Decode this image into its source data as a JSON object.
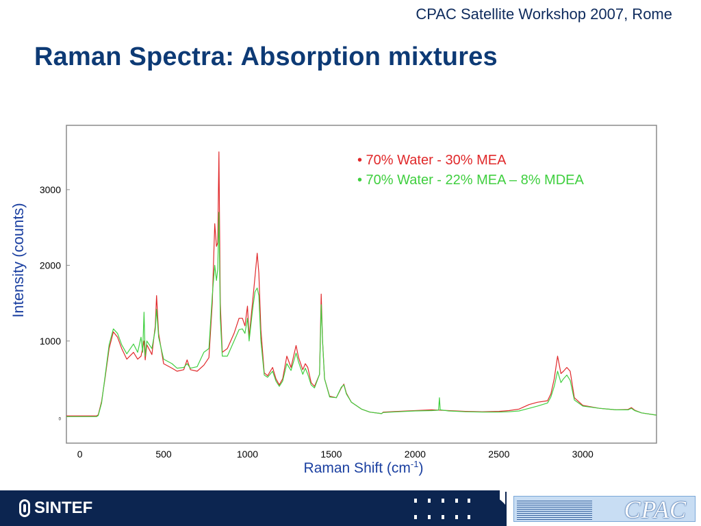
{
  "header": {
    "event": "CPAC Satellite Workshop 2007, Rome",
    "title": "Raman Spectra: Absorption mixtures"
  },
  "footer": {
    "left_logo_text": "SINTEF",
    "right_logo_text": "CPAC"
  },
  "colors": {
    "title": "#0d3a75",
    "axis_label": "#1a3fa0",
    "series_mea": "#e0282a",
    "series_mdea": "#3fcf3f",
    "footer_bg": "#0c2550"
  },
  "chart_data": {
    "type": "line",
    "xlabel": "Raman Shift (cm",
    "xlabel_sup": "-1",
    "xlabel_end": ")",
    "ylabel": "Intensity (counts)",
    "xlim": [
      -80,
      3440
    ],
    "ylim": [
      -350,
      3850
    ],
    "x_ticks": [
      0,
      500,
      1000,
      1500,
      2000,
      2500,
      3000
    ],
    "y_ticks": [
      0,
      1000,
      2000,
      3000
    ],
    "y_tick_labels": [
      "0",
      "1000",
      "2000",
      "3000"
    ],
    "grid": false,
    "legend_position": "top-right",
    "series": [
      {
        "name": "• 70% Water - 30% MEA",
        "color": "#e0282a",
        "points": [
          [
            -80,
            10
          ],
          [
            100,
            10
          ],
          [
            110,
            25
          ],
          [
            130,
            200
          ],
          [
            150,
            500
          ],
          [
            175,
            900
          ],
          [
            200,
            1120
          ],
          [
            225,
            1050
          ],
          [
            250,
            900
          ],
          [
            280,
            760
          ],
          [
            320,
            850
          ],
          [
            345,
            760
          ],
          [
            365,
            800
          ],
          [
            383,
            1000
          ],
          [
            390,
            750
          ],
          [
            400,
            950
          ],
          [
            430,
            820
          ],
          [
            450,
            1200
          ],
          [
            458,
            1600
          ],
          [
            470,
            1100
          ],
          [
            500,
            700
          ],
          [
            550,
            640
          ],
          [
            580,
            600
          ],
          [
            620,
            620
          ],
          [
            640,
            750
          ],
          [
            660,
            620
          ],
          [
            700,
            600
          ],
          [
            740,
            680
          ],
          [
            770,
            780
          ],
          [
            790,
            1500
          ],
          [
            805,
            2550
          ],
          [
            815,
            2250
          ],
          [
            823,
            2300
          ],
          [
            830,
            3500
          ],
          [
            838,
            1500
          ],
          [
            850,
            850
          ],
          [
            880,
            900
          ],
          [
            920,
            1100
          ],
          [
            950,
            1300
          ],
          [
            970,
            1300
          ],
          [
            985,
            1200
          ],
          [
            1000,
            1460
          ],
          [
            1010,
            1050
          ],
          [
            1030,
            1500
          ],
          [
            1045,
            1850
          ],
          [
            1058,
            2160
          ],
          [
            1068,
            1900
          ],
          [
            1080,
            1150
          ],
          [
            1100,
            580
          ],
          [
            1120,
            540
          ],
          [
            1150,
            650
          ],
          [
            1170,
            500
          ],
          [
            1190,
            420
          ],
          [
            1210,
            500
          ],
          [
            1235,
            800
          ],
          [
            1260,
            650
          ],
          [
            1290,
            940
          ],
          [
            1305,
            780
          ],
          [
            1330,
            620
          ],
          [
            1345,
            700
          ],
          [
            1360,
            650
          ],
          [
            1380,
            450
          ],
          [
            1400,
            400
          ],
          [
            1430,
            560
          ],
          [
            1440,
            1620
          ],
          [
            1448,
            1000
          ],
          [
            1460,
            500
          ],
          [
            1490,
            270
          ],
          [
            1530,
            250
          ],
          [
            1560,
            380
          ],
          [
            1575,
            430
          ],
          [
            1590,
            310
          ],
          [
            1620,
            190
          ],
          [
            1680,
            100
          ],
          [
            1730,
            60
          ],
          [
            1800,
            40
          ],
          [
            1810,
            60
          ],
          [
            1900,
            70
          ],
          [
            2000,
            80
          ],
          [
            2100,
            90
          ],
          [
            2200,
            80
          ],
          [
            2300,
            70
          ],
          [
            2400,
            65
          ],
          [
            2500,
            70
          ],
          [
            2560,
            80
          ],
          [
            2620,
            100
          ],
          [
            2680,
            160
          ],
          [
            2730,
            190
          ],
          [
            2790,
            210
          ],
          [
            2810,
            300
          ],
          [
            2830,
            500
          ],
          [
            2850,
            800
          ],
          [
            2870,
            570
          ],
          [
            2885,
            600
          ],
          [
            2905,
            650
          ],
          [
            2925,
            600
          ],
          [
            2950,
            250
          ],
          [
            3000,
            150
          ],
          [
            3100,
            110
          ],
          [
            3200,
            90
          ],
          [
            3270,
            95
          ],
          [
            3290,
            120
          ],
          [
            3310,
            85
          ],
          [
            3350,
            50
          ],
          [
            3440,
            20
          ]
        ]
      },
      {
        "name": "• 70% Water - 22% MEA – 8% MDEA",
        "color": "#3fcf3f",
        "points": [
          [
            -80,
            0
          ],
          [
            100,
            0
          ],
          [
            110,
            15
          ],
          [
            130,
            180
          ],
          [
            150,
            520
          ],
          [
            175,
            950
          ],
          [
            200,
            1160
          ],
          [
            225,
            1100
          ],
          [
            250,
            950
          ],
          [
            280,
            830
          ],
          [
            320,
            960
          ],
          [
            345,
            850
          ],
          [
            365,
            1050
          ],
          [
            375,
            850
          ],
          [
            383,
            1380
          ],
          [
            390,
            800
          ],
          [
            400,
            1000
          ],
          [
            430,
            900
          ],
          [
            450,
            1150
          ],
          [
            458,
            1420
          ],
          [
            470,
            1050
          ],
          [
            500,
            760
          ],
          [
            550,
            700
          ],
          [
            580,
            640
          ],
          [
            620,
            650
          ],
          [
            640,
            700
          ],
          [
            660,
            640
          ],
          [
            700,
            660
          ],
          [
            740,
            850
          ],
          [
            770,
            900
          ],
          [
            790,
            1600
          ],
          [
            805,
            2000
          ],
          [
            815,
            1800
          ],
          [
            823,
            1950
          ],
          [
            830,
            2700
          ],
          [
            838,
            1300
          ],
          [
            850,
            800
          ],
          [
            880,
            800
          ],
          [
            920,
            1000
          ],
          [
            950,
            1150
          ],
          [
            970,
            1160
          ],
          [
            985,
            1100
          ],
          [
            1000,
            1300
          ],
          [
            1010,
            1000
          ],
          [
            1030,
            1400
          ],
          [
            1045,
            1650
          ],
          [
            1058,
            1700
          ],
          [
            1068,
            1600
          ],
          [
            1080,
            1000
          ],
          [
            1100,
            550
          ],
          [
            1120,
            520
          ],
          [
            1150,
            600
          ],
          [
            1170,
            470
          ],
          [
            1190,
            400
          ],
          [
            1210,
            470
          ],
          [
            1235,
            700
          ],
          [
            1260,
            610
          ],
          [
            1290,
            840
          ],
          [
            1305,
            720
          ],
          [
            1330,
            560
          ],
          [
            1345,
            640
          ],
          [
            1360,
            560
          ],
          [
            1380,
            420
          ],
          [
            1400,
            380
          ],
          [
            1430,
            560
          ],
          [
            1440,
            1480
          ],
          [
            1448,
            1000
          ],
          [
            1460,
            500
          ],
          [
            1490,
            260
          ],
          [
            1530,
            250
          ],
          [
            1560,
            390
          ],
          [
            1575,
            420
          ],
          [
            1590,
            300
          ],
          [
            1620,
            190
          ],
          [
            1680,
            100
          ],
          [
            1730,
            60
          ],
          [
            1800,
            40
          ],
          [
            1810,
            55
          ],
          [
            1900,
            65
          ],
          [
            2000,
            75
          ],
          [
            2100,
            80
          ],
          [
            2140,
            85
          ],
          [
            2145,
            250
          ],
          [
            2150,
            90
          ],
          [
            2200,
            75
          ],
          [
            2300,
            65
          ],
          [
            2400,
            60
          ],
          [
            2500,
            60
          ],
          [
            2560,
            65
          ],
          [
            2620,
            75
          ],
          [
            2680,
            110
          ],
          [
            2730,
            140
          ],
          [
            2790,
            180
          ],
          [
            2810,
            260
          ],
          [
            2830,
            400
          ],
          [
            2850,
            600
          ],
          [
            2870,
            450
          ],
          [
            2885,
            500
          ],
          [
            2905,
            550
          ],
          [
            2925,
            480
          ],
          [
            2950,
            220
          ],
          [
            3000,
            140
          ],
          [
            3100,
            110
          ],
          [
            3200,
            90
          ],
          [
            3270,
            90
          ],
          [
            3290,
            110
          ],
          [
            3310,
            80
          ],
          [
            3350,
            50
          ],
          [
            3440,
            20
          ]
        ]
      }
    ]
  }
}
